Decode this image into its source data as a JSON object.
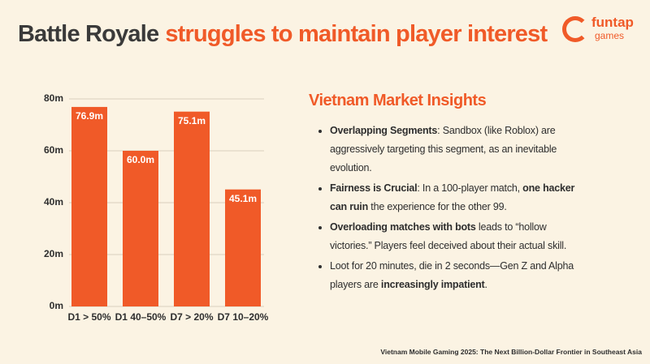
{
  "title": [
    {
      "text": "Battle Royale",
      "color": "#3a3a3a"
    },
    {
      "text": "struggles to maintain player interest",
      "color": "#f05a28"
    }
  ],
  "logo": {
    "name": "funtap",
    "sub": "games"
  },
  "chart_data": {
    "type": "bar",
    "categories": [
      "D1 > 50%",
      "D1 40–50%",
      "D7 > 20%",
      "D7 10–20%"
    ],
    "values": [
      76.9,
      60.0,
      75.1,
      45.1
    ],
    "value_labels": [
      "76.9m",
      "60.0m",
      "75.1m",
      "45.1m"
    ],
    "color": "#f05a28",
    "ylim": [
      0,
      80
    ],
    "yticks": [
      {
        "value": 0,
        "label": "0m"
      },
      {
        "value": 20,
        "label": "20m"
      },
      {
        "value": 40,
        "label": "40m"
      },
      {
        "value": 60,
        "label": "60m"
      },
      {
        "value": 80,
        "label": "80m"
      }
    ],
    "grid": true
  },
  "insights": {
    "heading": "Vietnam Market Insights",
    "bullets": [
      {
        "segments": [
          {
            "text": "Overlapping Segments",
            "bold": true
          },
          {
            "text": ": Sandbox (like Roblox) are aggressively targeting this segment, as an inevitable evolution.",
            "bold": false
          }
        ]
      },
      {
        "segments": [
          {
            "text": "Fairness is Crucial",
            "bold": true
          },
          {
            "text": ": In a 100-player match, ",
            "bold": false
          },
          {
            "text": "one hacker can ruin",
            "bold": true
          },
          {
            "text": " the experience for the other 99.",
            "bold": false
          }
        ]
      },
      {
        "segments": [
          {
            "text": "Overloading matches with bots",
            "bold": true
          },
          {
            "text": " leads to “hollow victories.” Players feel deceived about their actual skill.",
            "bold": false
          }
        ]
      },
      {
        "segments": [
          {
            "text": "Loot for 20 minutes, die in 2 seconds—Gen Z and Alpha players are ",
            "bold": false
          },
          {
            "text": "increasingly impatient",
            "bold": true
          },
          {
            "text": ".",
            "bold": false
          }
        ]
      }
    ]
  },
  "footer": "Vietnam Mobile Gaming 2025: The Next Billion-Dollar Frontier in Southeast Asia"
}
